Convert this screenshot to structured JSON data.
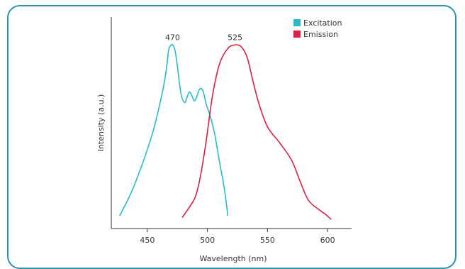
{
  "chart_data": {
    "type": "line",
    "xlabel": "Wavelength (nm)",
    "ylabel": "Intensity (a.u.)",
    "xlim": [
      420,
      620
    ],
    "ylim": [
      0,
      1.05
    ],
    "x_ticks": [
      "450",
      "500",
      "550",
      "600"
    ],
    "grid": false,
    "legend": "top-right",
    "series": [
      {
        "name": "Excitation",
        "color": "#29b9c9",
        "peak_label": "470",
        "peak_index": 10,
        "points": [
          [
            427,
            0.02
          ],
          [
            437,
            0.16
          ],
          [
            447,
            0.34
          ],
          [
            455,
            0.51
          ],
          [
            461,
            0.68
          ],
          [
            464,
            0.78
          ],
          [
            466,
            0.87
          ],
          [
            467,
            0.93
          ],
          [
            468,
            0.98
          ],
          [
            470,
            1.0
          ],
          [
            471,
            1.0
          ],
          [
            473,
            0.97
          ],
          [
            475,
            0.88
          ],
          [
            478,
            0.72
          ],
          [
            481,
            0.67
          ],
          [
            483,
            0.7
          ],
          [
            485,
            0.73
          ],
          [
            487,
            0.71
          ],
          [
            489,
            0.68
          ],
          [
            491,
            0.7
          ],
          [
            493,
            0.74
          ],
          [
            495,
            0.75
          ],
          [
            497,
            0.72
          ],
          [
            499,
            0.66
          ],
          [
            502,
            0.6
          ],
          [
            506,
            0.49
          ],
          [
            510,
            0.33
          ],
          [
            514,
            0.18
          ],
          [
            517,
            0.02
          ]
        ]
      },
      {
        "name": "Emission",
        "color": "#d8203f",
        "peak_label": "525",
        "peak_index": 8,
        "points": [
          [
            479,
            0.01
          ],
          [
            485,
            0.07
          ],
          [
            490,
            0.13
          ],
          [
            494,
            0.24
          ],
          [
            499,
            0.45
          ],
          [
            504,
            0.7
          ],
          [
            510,
            0.89
          ],
          [
            517,
            0.98
          ],
          [
            523,
            1.0
          ],
          [
            528,
            0.99
          ],
          [
            533,
            0.93
          ],
          [
            538,
            0.79
          ],
          [
            543,
            0.66
          ],
          [
            550,
            0.53
          ],
          [
            560,
            0.44
          ],
          [
            570,
            0.34
          ],
          [
            577,
            0.22
          ],
          [
            584,
            0.11
          ],
          [
            592,
            0.06
          ],
          [
            598,
            0.03
          ],
          [
            603,
            0.0
          ]
        ]
      }
    ]
  }
}
